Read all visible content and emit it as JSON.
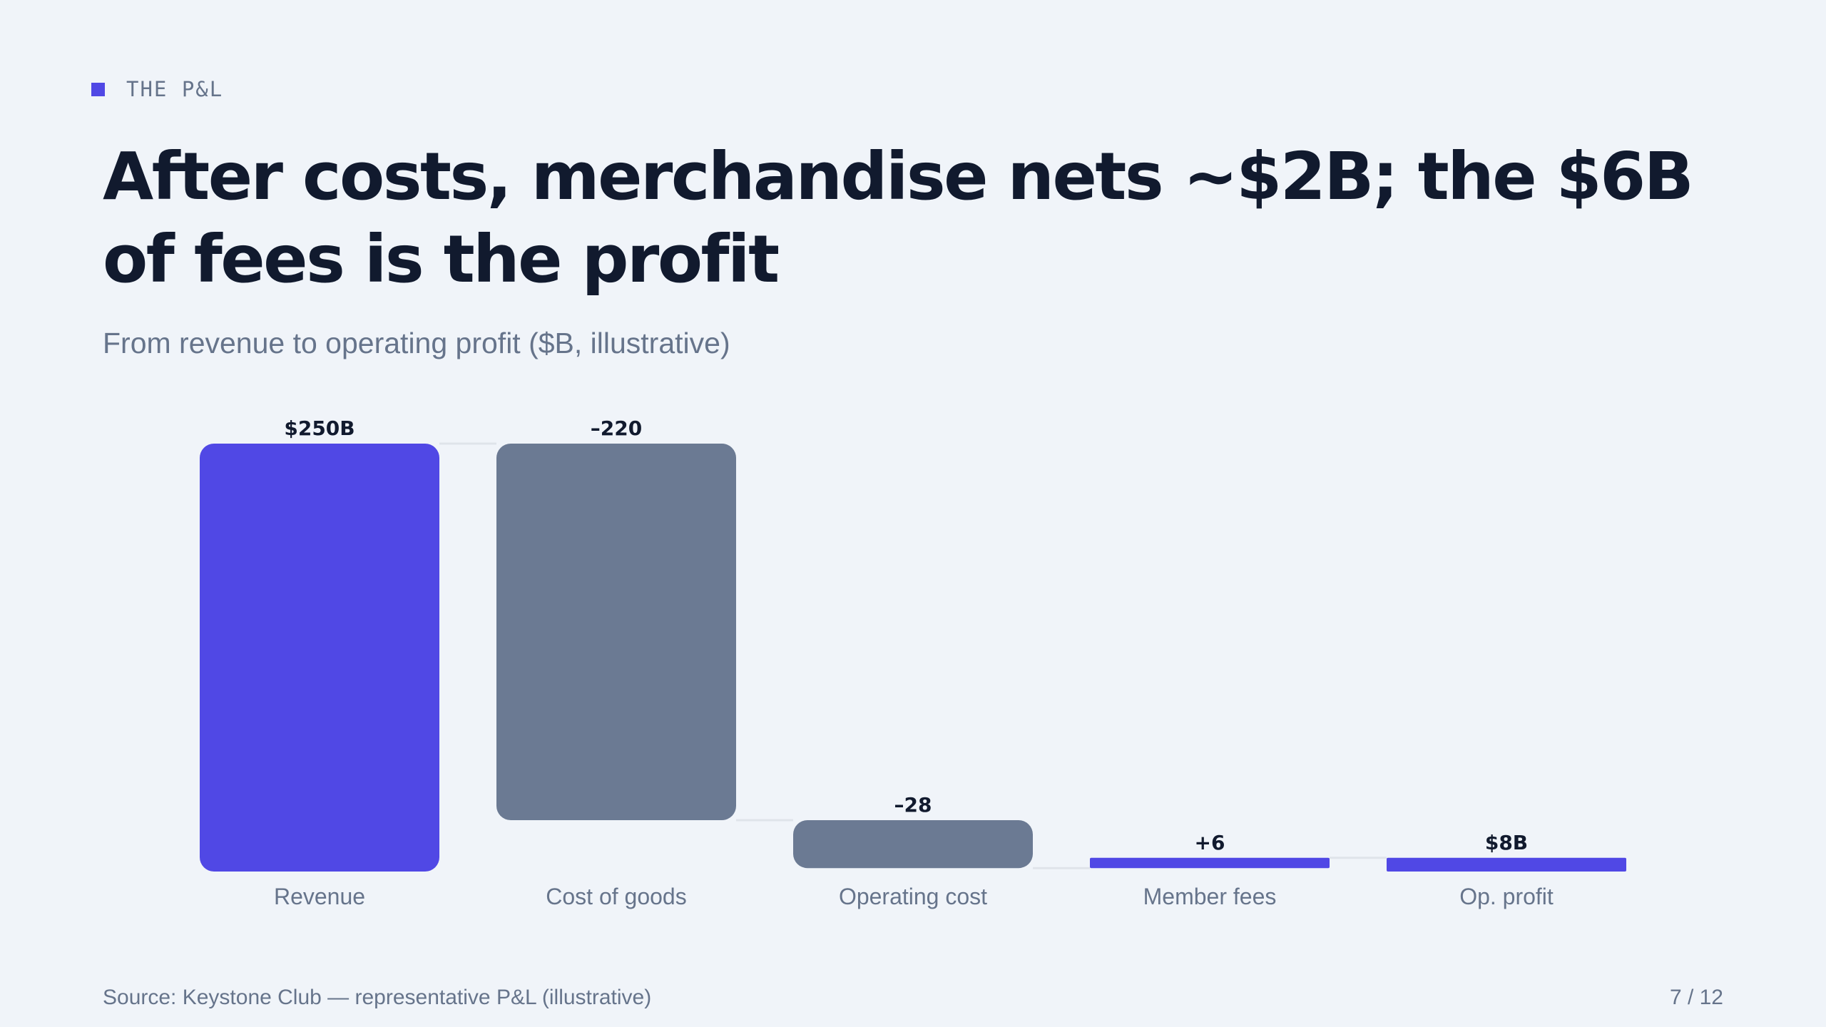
{
  "kicker": "THE P&L",
  "title": "After costs, merchandise nets ~$2B; the $6B of fees is the profit",
  "subtitle": "From revenue to operating profit ($B, illustrative)",
  "colors": {
    "accent": "#5048e5",
    "cost": "#6b7a93",
    "connector": "#dfe4ea"
  },
  "chart_data": {
    "type": "bar",
    "subtype": "waterfall",
    "categories": [
      "Revenue",
      "Cost of goods",
      "Operating cost",
      "Member fees",
      "Op. profit"
    ],
    "values": [
      250,
      -220,
      -28,
      6,
      8
    ],
    "kinds": [
      "total",
      "decrease",
      "decrease",
      "increase",
      "total"
    ],
    "value_labels": [
      "$250B",
      "–220",
      "–28",
      "+6",
      "$8B"
    ],
    "ylim": [
      0,
      250
    ],
    "grid": false,
    "legend": "none"
  },
  "footer": {
    "source": "Source: Keystone Club — representative P&L (illustrative)",
    "page": "7 / 12"
  }
}
